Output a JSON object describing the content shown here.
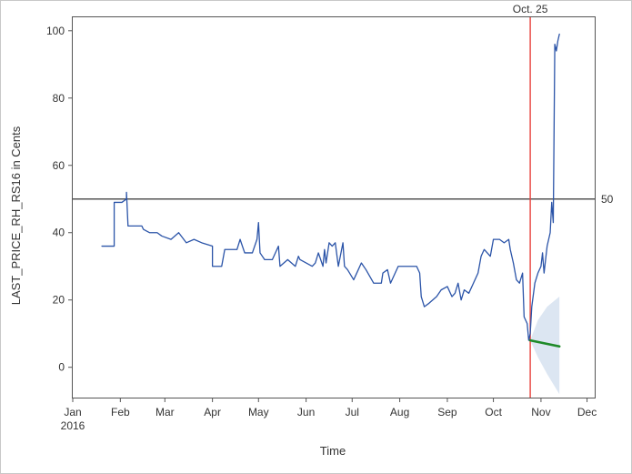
{
  "chart_data": {
    "type": "line",
    "xlabel": "Time",
    "ylabel": "LAST_PRICE_RH_RS16 in Cents",
    "ylim": [
      -9,
      104
    ],
    "xlim": [
      "2016-01-01",
      "2016-12-06"
    ],
    "y_ticks": [
      0,
      20,
      40,
      60,
      80,
      100
    ],
    "x_ticks": [
      {
        "date": "2016-01-01",
        "label": "Jan",
        "sublabel": "2016"
      },
      {
        "date": "2016-02-01",
        "label": "Feb"
      },
      {
        "date": "2016-03-01",
        "label": "Mar"
      },
      {
        "date": "2016-04-01",
        "label": "Apr"
      },
      {
        "date": "2016-05-01",
        "label": "May"
      },
      {
        "date": "2016-06-01",
        "label": "Jun"
      },
      {
        "date": "2016-07-01",
        "label": "Jul"
      },
      {
        "date": "2016-08-01",
        "label": "Aug"
      },
      {
        "date": "2016-09-01",
        "label": "Sep"
      },
      {
        "date": "2016-10-01",
        "label": "Oct"
      },
      {
        "date": "2016-11-01",
        "label": "Nov"
      },
      {
        "date": "2016-12-01",
        "label": "Dec"
      }
    ],
    "grid": false,
    "legend": "none",
    "reference_lines": [
      {
        "orientation": "horizontal",
        "y": 50,
        "label": "50",
        "color": "#555555"
      },
      {
        "orientation": "vertical",
        "x": "2016-10-25",
        "label": "Oct. 25",
        "color": "#e8413c"
      }
    ],
    "series": [
      {
        "color": "#2b54a8",
        "points": [
          [
            "2016-01-20",
            36
          ],
          [
            "2016-01-28",
            36
          ],
          [
            "2016-01-28",
            49
          ],
          [
            "2016-02-02",
            49
          ],
          [
            "2016-02-05",
            50
          ],
          [
            "2016-02-05",
            52
          ],
          [
            "2016-02-06",
            42
          ],
          [
            "2016-02-15",
            42
          ],
          [
            "2016-02-16",
            41
          ],
          [
            "2016-02-20",
            40
          ],
          [
            "2016-02-25",
            40
          ],
          [
            "2016-02-28",
            39
          ],
          [
            "2016-03-05",
            38
          ],
          [
            "2016-03-10",
            40
          ],
          [
            "2016-03-15",
            37
          ],
          [
            "2016-03-20",
            38
          ],
          [
            "2016-03-25",
            37
          ],
          [
            "2016-04-01",
            36
          ],
          [
            "2016-04-01",
            30
          ],
          [
            "2016-04-07",
            30
          ],
          [
            "2016-04-09",
            35
          ],
          [
            "2016-04-17",
            35
          ],
          [
            "2016-04-19",
            38
          ],
          [
            "2016-04-22",
            34
          ],
          [
            "2016-04-27",
            34
          ],
          [
            "2016-04-30",
            38
          ],
          [
            "2016-05-01",
            43
          ],
          [
            "2016-05-02",
            34
          ],
          [
            "2016-05-05",
            32
          ],
          [
            "2016-05-10",
            32
          ],
          [
            "2016-05-14",
            36
          ],
          [
            "2016-05-15",
            30
          ],
          [
            "2016-05-20",
            32
          ],
          [
            "2016-05-25",
            30
          ],
          [
            "2016-05-27",
            33
          ],
          [
            "2016-05-28",
            32
          ],
          [
            "2016-06-05",
            30
          ],
          [
            "2016-06-07",
            31
          ],
          [
            "2016-06-09",
            34
          ],
          [
            "2016-06-12",
            30
          ],
          [
            "2016-06-13",
            35
          ],
          [
            "2016-06-14",
            31
          ],
          [
            "2016-06-16",
            37
          ],
          [
            "2016-06-18",
            36
          ],
          [
            "2016-06-20",
            37
          ],
          [
            "2016-06-22",
            30
          ],
          [
            "2016-06-25",
            37
          ],
          [
            "2016-06-26",
            30
          ],
          [
            "2016-06-28",
            29
          ],
          [
            "2016-07-02",
            26
          ],
          [
            "2016-07-03",
            27
          ],
          [
            "2016-07-05",
            29
          ],
          [
            "2016-07-07",
            31
          ],
          [
            "2016-07-10",
            29
          ],
          [
            "2016-07-15",
            25
          ],
          [
            "2016-07-20",
            25
          ],
          [
            "2016-07-21",
            28
          ],
          [
            "2016-07-24",
            29
          ],
          [
            "2016-07-26",
            25
          ],
          [
            "2016-07-31",
            30
          ],
          [
            "2016-08-12",
            30
          ],
          [
            "2016-08-14",
            28
          ],
          [
            "2016-08-15",
            21
          ],
          [
            "2016-08-17",
            18
          ],
          [
            "2016-08-20",
            19
          ],
          [
            "2016-08-25",
            21
          ],
          [
            "2016-08-28",
            23
          ],
          [
            "2016-09-01",
            24
          ],
          [
            "2016-09-04",
            21
          ],
          [
            "2016-09-06",
            22
          ],
          [
            "2016-09-08",
            25
          ],
          [
            "2016-09-10",
            20
          ],
          [
            "2016-09-12",
            23
          ],
          [
            "2016-09-15",
            22
          ],
          [
            "2016-09-18",
            25
          ],
          [
            "2016-09-21",
            28
          ],
          [
            "2016-09-23",
            33
          ],
          [
            "2016-09-25",
            35
          ],
          [
            "2016-09-29",
            33
          ],
          [
            "2016-10-01",
            38
          ],
          [
            "2016-10-05",
            38
          ],
          [
            "2016-10-08",
            37
          ],
          [
            "2016-10-11",
            38
          ],
          [
            "2016-10-12",
            35
          ],
          [
            "2016-10-14",
            31
          ],
          [
            "2016-10-16",
            26
          ],
          [
            "2016-10-18",
            25
          ],
          [
            "2016-10-20",
            28
          ],
          [
            "2016-10-21",
            15
          ],
          [
            "2016-10-23",
            13
          ],
          [
            "2016-10-24",
            8
          ],
          [
            "2016-10-25",
            10
          ],
          [
            "2016-10-26",
            18
          ],
          [
            "2016-10-28",
            25
          ],
          [
            "2016-10-30",
            28
          ],
          [
            "2016-11-01",
            30
          ],
          [
            "2016-11-02",
            34
          ],
          [
            "2016-11-03",
            28
          ],
          [
            "2016-11-05",
            36
          ],
          [
            "2016-11-07",
            40
          ],
          [
            "2016-11-08",
            49
          ],
          [
            "2016-11-09",
            43
          ],
          [
            "2016-11-10",
            96
          ],
          [
            "2016-11-11",
            94
          ],
          [
            "2016-11-12",
            97
          ],
          [
            "2016-11-13",
            99
          ]
        ]
      },
      {
        "color": "#1e8a28",
        "points": [
          [
            "2016-10-25",
            8
          ],
          [
            "2016-11-13",
            6.2
          ]
        ]
      }
    ],
    "band": {
      "color": "#dce6f2",
      "upper": [
        [
          "2016-10-25",
          8
        ],
        [
          "2016-10-30",
          14
        ],
        [
          "2016-11-05",
          18
        ],
        [
          "2016-11-13",
          21
        ]
      ],
      "lower": [
        [
          "2016-10-25",
          8
        ],
        [
          "2016-10-30",
          3
        ],
        [
          "2016-11-05",
          -2
        ],
        [
          "2016-11-13",
          -8
        ]
      ]
    }
  }
}
